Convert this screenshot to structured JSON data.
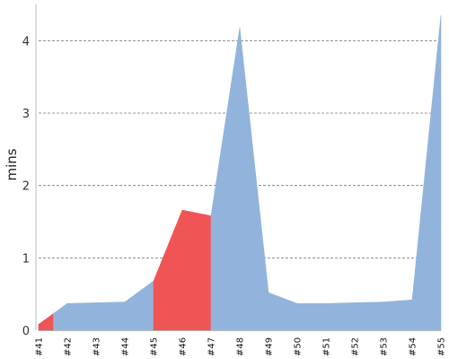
{
  "chart_data": {
    "type": "area",
    "x": [
      "#41",
      "#42",
      "#43",
      "#44",
      "#45",
      "#46",
      "#47",
      "#48",
      "#49",
      "#50",
      "#51",
      "#52",
      "#53",
      "#54",
      "#55"
    ],
    "y": [
      0.08,
      0.37,
      0.38,
      0.39,
      0.68,
      1.66,
      1.58,
      4.18,
      0.52,
      0.37,
      0.37,
      0.38,
      0.39,
      0.42,
      4.35
    ],
    "status": [
      "failure",
      "success",
      "success",
      "success",
      "success",
      "failure",
      "failure",
      "success",
      "success",
      "success",
      "success",
      "success",
      "success",
      "success",
      "success"
    ],
    "ylabel": "mins",
    "xlabel": "",
    "title": "",
    "ylim": [
      0,
      4.5
    ],
    "yticks": [
      0,
      1,
      2,
      3,
      4
    ],
    "grid": true,
    "colors": {
      "success": "#92b4dc",
      "failure": "#f05555",
      "grid": "#777777",
      "axis": "#bbbbbb"
    }
  }
}
